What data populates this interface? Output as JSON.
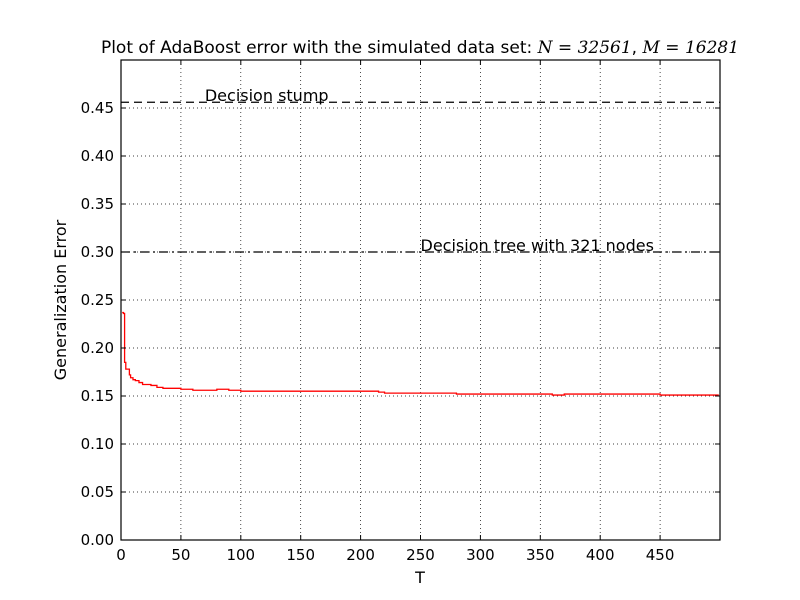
{
  "chart_data": {
    "type": "line",
    "title": "Plot of AdaBoost error with the simulated data set: N = 32561, M = 16281",
    "title_parts": {
      "prefix": "Plot of AdaBoost error with the simulated data set: ",
      "n_symbol": "N",
      "n_value": "32561",
      "m_symbol": "M",
      "m_value": "16281"
    },
    "xlabel": "T",
    "ylabel": "Generalization Error",
    "xlim": [
      0,
      500
    ],
    "ylim": [
      0.0,
      0.5
    ],
    "xticks": [
      "0",
      "50",
      "100",
      "150",
      "200",
      "250",
      "300",
      "350",
      "400",
      "450"
    ],
    "yticks": [
      "0.00",
      "0.05",
      "0.10",
      "0.15",
      "0.20",
      "0.25",
      "0.30",
      "0.35",
      "0.40",
      "0.45"
    ],
    "grid": true,
    "series": [
      {
        "color": "#ff0000",
        "style": "solid",
        "x": [
          1,
          2,
          3,
          4,
          5,
          6,
          7,
          8,
          10,
          12,
          15,
          18,
          20,
          25,
          30,
          35,
          40,
          45,
          50,
          55,
          60,
          70,
          80,
          90,
          100,
          110,
          120,
          150,
          180,
          200,
          210,
          215,
          220,
          230,
          250,
          280,
          300,
          320,
          350,
          360,
          370,
          400,
          450,
          499
        ],
        "y": [
          0.237,
          0.236,
          0.185,
          0.178,
          0.178,
          0.178,
          0.172,
          0.169,
          0.167,
          0.166,
          0.164,
          0.162,
          0.162,
          0.161,
          0.159,
          0.158,
          0.158,
          0.158,
          0.157,
          0.157,
          0.156,
          0.156,
          0.157,
          0.156,
          0.155,
          0.155,
          0.155,
          0.155,
          0.155,
          0.155,
          0.155,
          0.154,
          0.153,
          0.153,
          0.153,
          0.152,
          0.152,
          0.152,
          0.152,
          0.151,
          0.152,
          0.152,
          0.151,
          0.151
        ]
      }
    ],
    "reference_lines": [
      {
        "label": "Decision stump",
        "y": 0.456,
        "style": "dashed",
        "color": "#000000",
        "label_x": 70
      },
      {
        "label": "Decision tree with 321 nodes",
        "y": 0.3,
        "style": "dashdot",
        "color": "#000000",
        "label_x": 250
      }
    ]
  }
}
